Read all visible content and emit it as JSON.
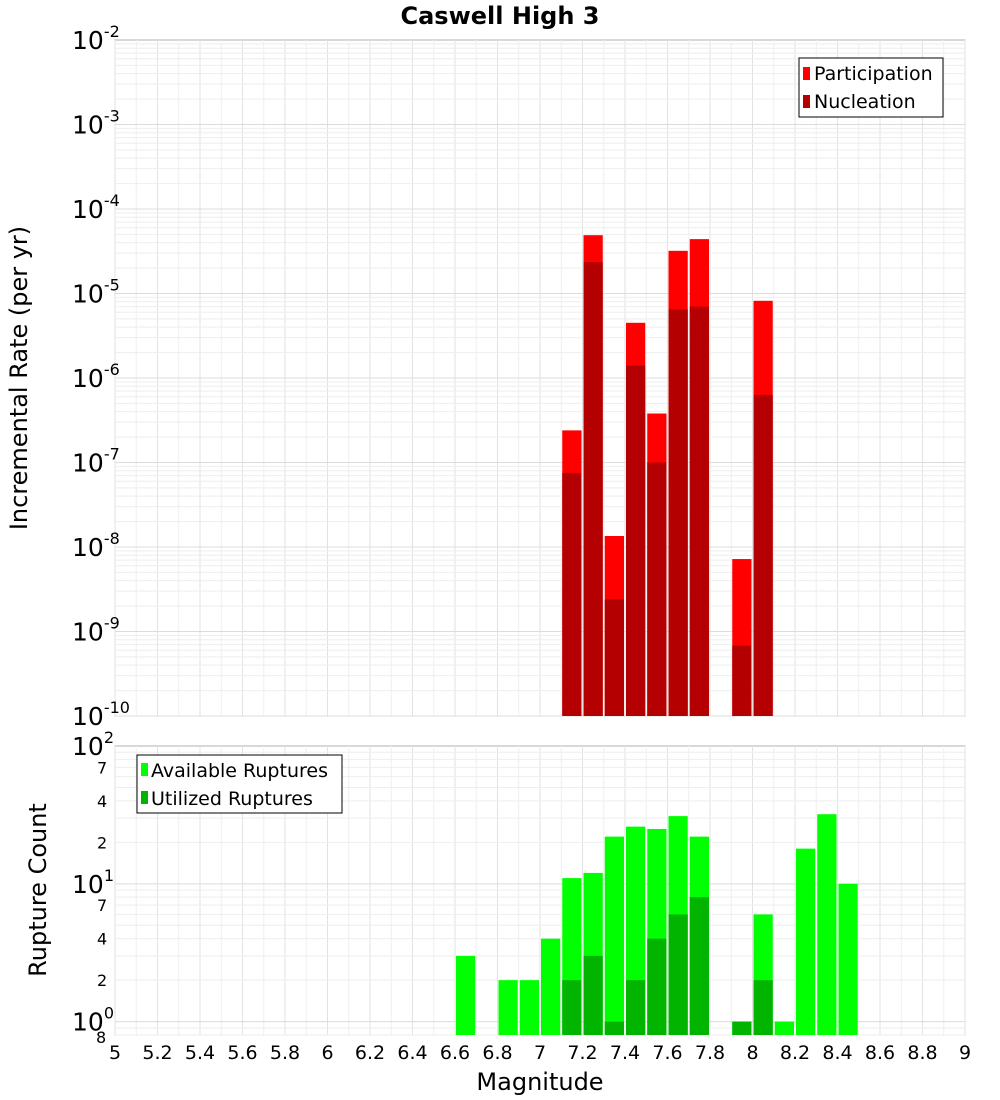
{
  "chart_data": [
    {
      "type": "bar",
      "title": "Caswell High 3",
      "ylabel": "Incremental Rate (per yr)",
      "xlabel": "",
      "y_scale": "log",
      "ylim": [
        1e-10,
        0.01
      ],
      "xlim": [
        5,
        9
      ],
      "x_tick_labels": [
        "5",
        "5.2",
        "5.4",
        "5.6",
        "5.8",
        "6",
        "6.2",
        "6.4",
        "6.6",
        "6.8",
        "7",
        "7.2",
        "7.4",
        "7.6",
        "7.8",
        "8",
        "8.2",
        "8.4",
        "8.6",
        "8.8",
        "9"
      ],
      "y_ticks": [
        {
          "base": "10",
          "exp": "-2"
        },
        {
          "base": "10",
          "exp": "-3"
        },
        {
          "base": "10",
          "exp": "-4"
        },
        {
          "base": "10",
          "exp": "-5"
        },
        {
          "base": "10",
          "exp": "-6"
        },
        {
          "base": "10",
          "exp": "-7"
        },
        {
          "base": "10",
          "exp": "-8"
        },
        {
          "base": "10",
          "exp": "-9"
        },
        {
          "base": "10",
          "exp": "-10"
        }
      ],
      "legend_position": "top-right",
      "grid": true,
      "x": [
        7.15,
        7.25,
        7.35,
        7.45,
        7.55,
        7.65,
        7.75,
        7.95,
        8.05
      ],
      "series": [
        {
          "name": "Participation",
          "color": "#ff0000",
          "values": [
            2.4e-07,
            4.9e-05,
            1.35e-08,
            4.5e-06,
            3.8e-07,
            3.2e-05,
            4.4e-05,
            7.2e-09,
            8.2e-06
          ]
        },
        {
          "name": "Nucleation",
          "color": "#b40000",
          "values": [
            7.5e-08,
            2.35e-05,
            2.4e-09,
            1.4e-06,
            1e-07,
            6.5e-06,
            7e-06,
            6.8e-10,
            6.3e-07
          ]
        }
      ]
    },
    {
      "type": "bar",
      "title": "",
      "ylabel": "Rupture Count",
      "xlabel": "Magnitude",
      "y_scale": "log",
      "ylim": [
        0.8,
        100
      ],
      "xlim": [
        5,
        9
      ],
      "x_tick_labels": [
        "5",
        "5.2",
        "5.4",
        "5.6",
        "5.8",
        "6",
        "6.2",
        "6.4",
        "6.6",
        "6.8",
        "7",
        "7.2",
        "7.4",
        "7.6",
        "7.8",
        "8",
        "8.2",
        "8.4",
        "8.6",
        "8.8",
        "9"
      ],
      "y_major_ticks": [
        {
          "base": "10",
          "exp": "2",
          "value": 100
        },
        {
          "base": "10",
          "exp": "1",
          "value": 10
        },
        {
          "base": "10",
          "exp": "0",
          "value": 1
        }
      ],
      "y_minor_ticks": [
        {
          "label": "7",
          "value": 70
        },
        {
          "label": "4",
          "value": 40
        },
        {
          "label": "2",
          "value": 20
        },
        {
          "label": "7",
          "value": 7
        },
        {
          "label": "4",
          "value": 4
        },
        {
          "label": "2",
          "value": 2
        },
        {
          "label": "8",
          "value": 0.8
        }
      ],
      "legend_position": "top-left",
      "grid": true,
      "x": [
        6.65,
        6.85,
        6.95,
        7.05,
        7.15,
        7.25,
        7.35,
        7.45,
        7.55,
        7.65,
        7.75,
        7.95,
        8.05,
        8.15,
        8.25,
        8.35,
        8.45
      ],
      "series": [
        {
          "name": "Available Ruptures",
          "color": "#00ff00",
          "values": [
            3,
            2,
            2,
            4,
            11,
            12,
            22,
            26,
            25,
            31,
            22,
            1,
            6,
            1,
            18,
            32,
            10
          ]
        },
        {
          "name": "Utilized Ruptures",
          "color": "#00b400",
          "values": [
            0,
            0,
            0,
            0,
            2,
            3,
            1,
            2,
            4,
            6,
            8,
            1,
            2,
            0,
            0,
            0,
            0
          ]
        }
      ]
    }
  ]
}
